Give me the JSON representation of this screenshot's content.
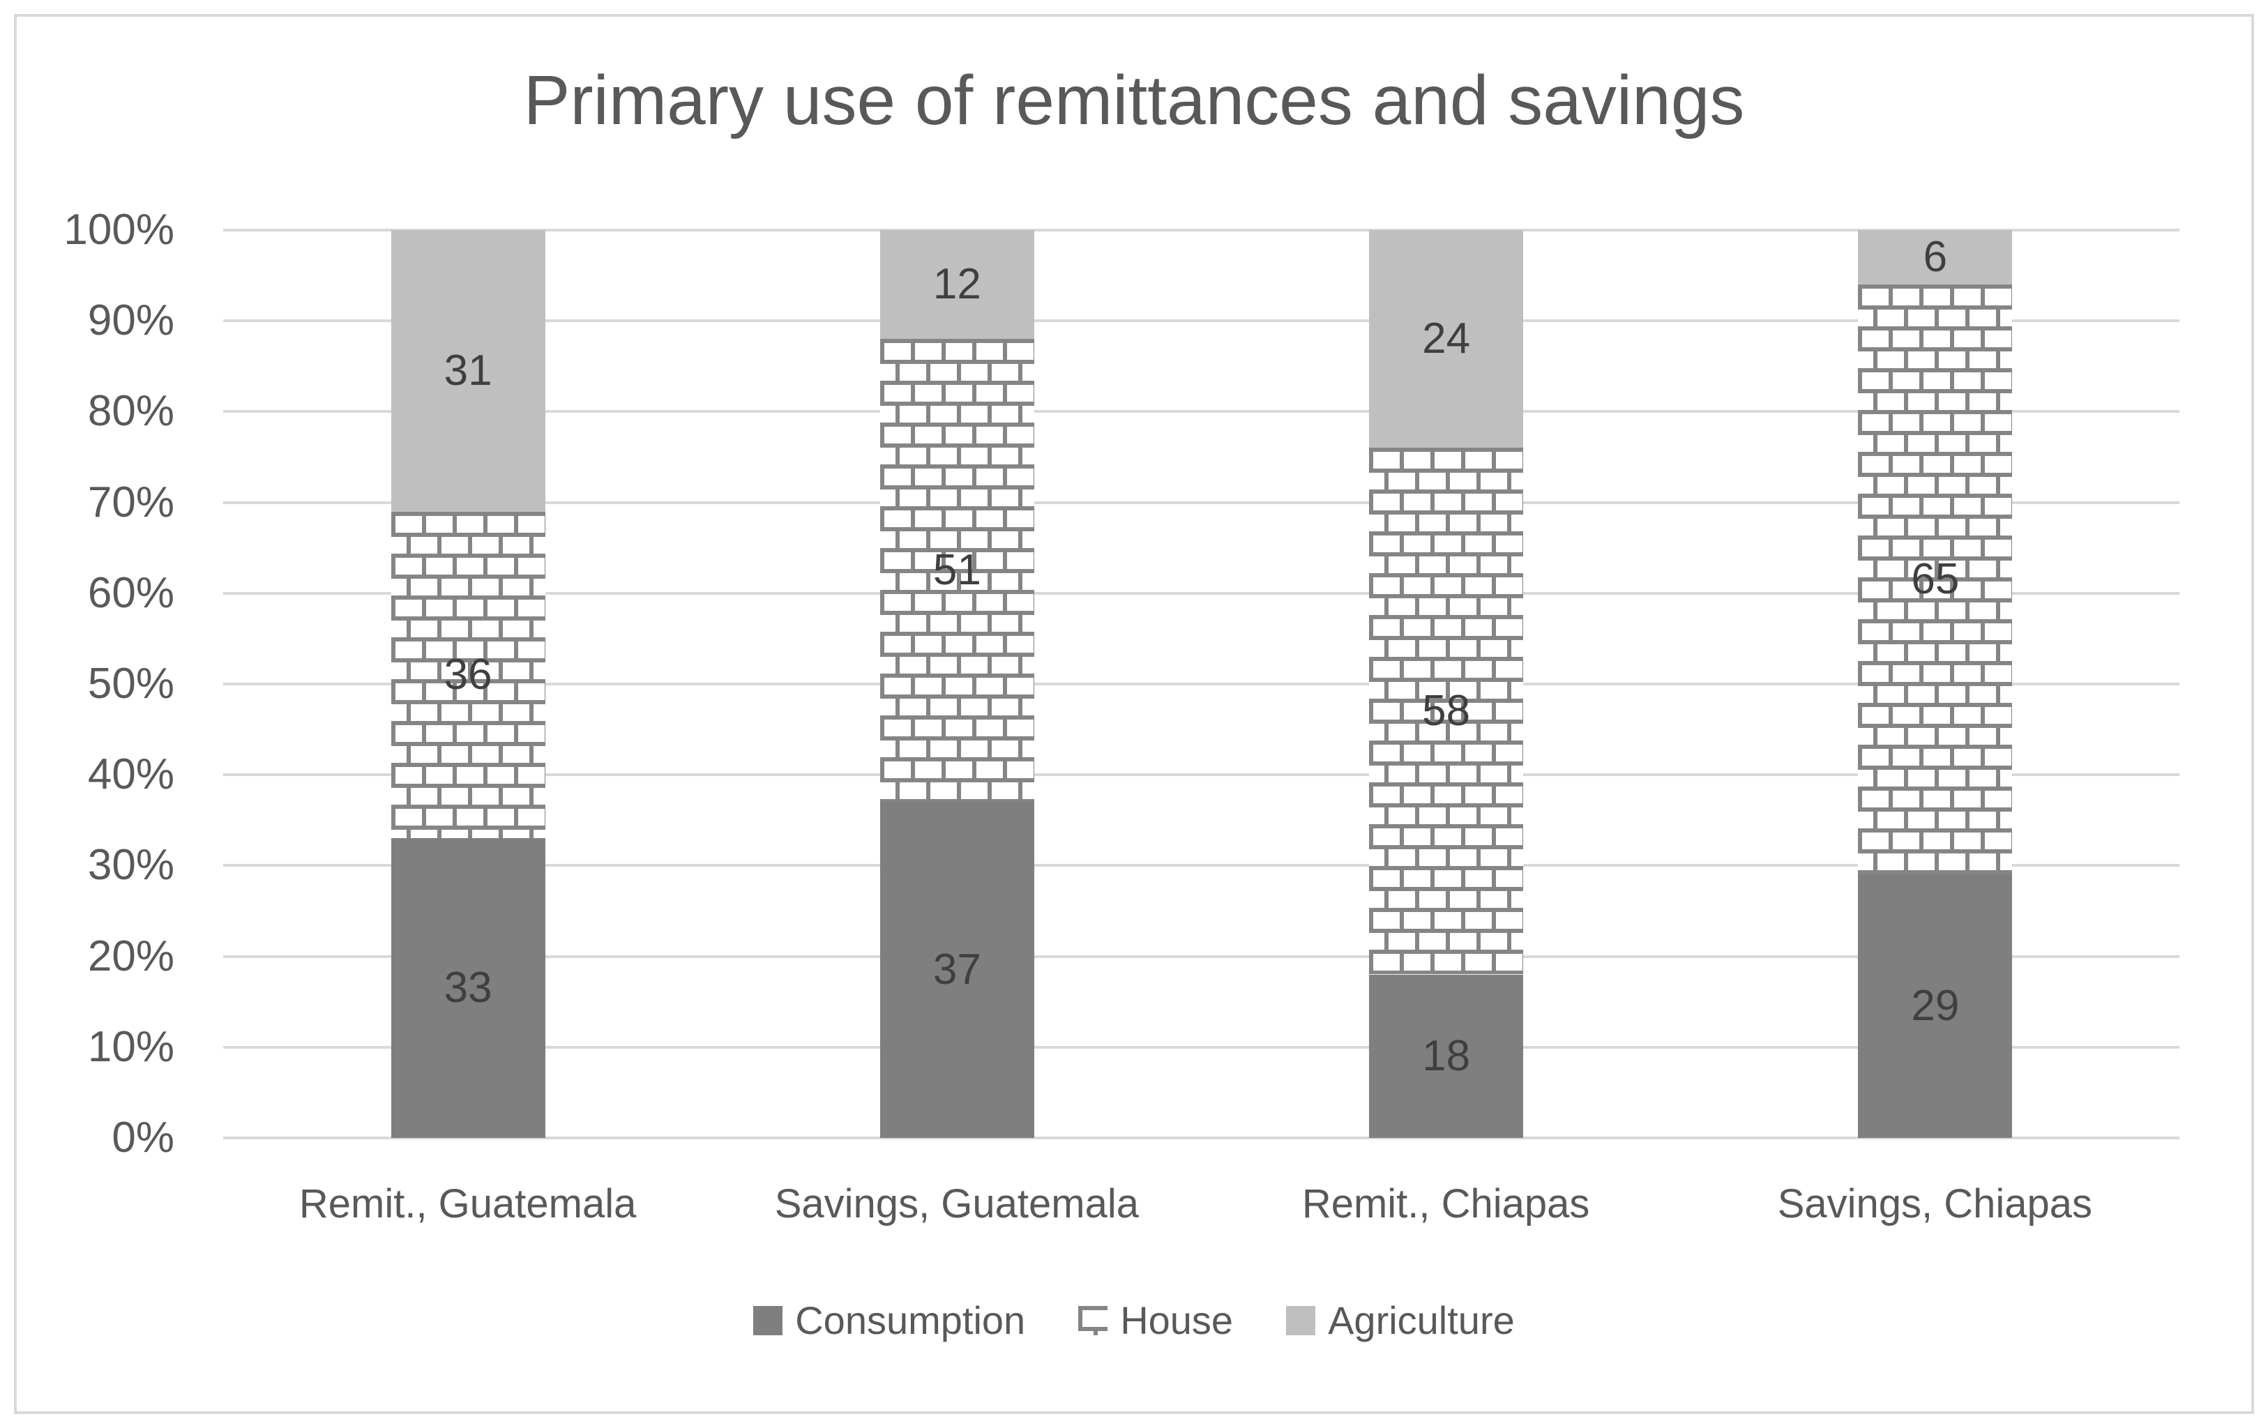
{
  "title": "Primary use of remittances and savings",
  "colors": {
    "consumption": "#7f7f7f",
    "agriculture": "#bfbfbf",
    "brick_line": "#858585",
    "brick_background": "#ffffff",
    "gridline": "#d9d9d9",
    "axis_text": "#595959",
    "data_label_text": "#3f3f3f"
  },
  "legend": {
    "items": [
      {
        "label": "Consumption",
        "swatch": "solid",
        "color_key": "consumption"
      },
      {
        "label": "House",
        "swatch": "brick"
      },
      {
        "label": "Agriculture",
        "swatch": "solid",
        "color_key": "agriculture"
      }
    ]
  },
  "chart_data": {
    "type": "bar",
    "stacked": true,
    "title": "Primary use of remittances and savings",
    "categories": [
      "Remit., Guatemala",
      "Savings, Guatemala",
      "Remit., Chiapas",
      "Savings, Chiapas"
    ],
    "series": [
      {
        "name": "Consumption",
        "fill": "solid",
        "color_key": "consumption",
        "values": [
          33,
          37,
          18,
          29
        ]
      },
      {
        "name": "House",
        "fill": "brick",
        "values": [
          36,
          51,
          58,
          65
        ]
      },
      {
        "name": "Agriculture",
        "fill": "solid",
        "color_key": "agriculture",
        "values": [
          31,
          12,
          24,
          6
        ]
      }
    ],
    "xlabel": "",
    "ylabel": "",
    "ylim": [
      0,
      100
    ],
    "y_ticks": [
      "0%",
      "10%",
      "20%",
      "30%",
      "40%",
      "50%",
      "60%",
      "70%",
      "80%",
      "90%",
      "100%"
    ],
    "y_tick_format": "percent",
    "grid": true,
    "data_labels": true,
    "legend_position": "bottom"
  }
}
